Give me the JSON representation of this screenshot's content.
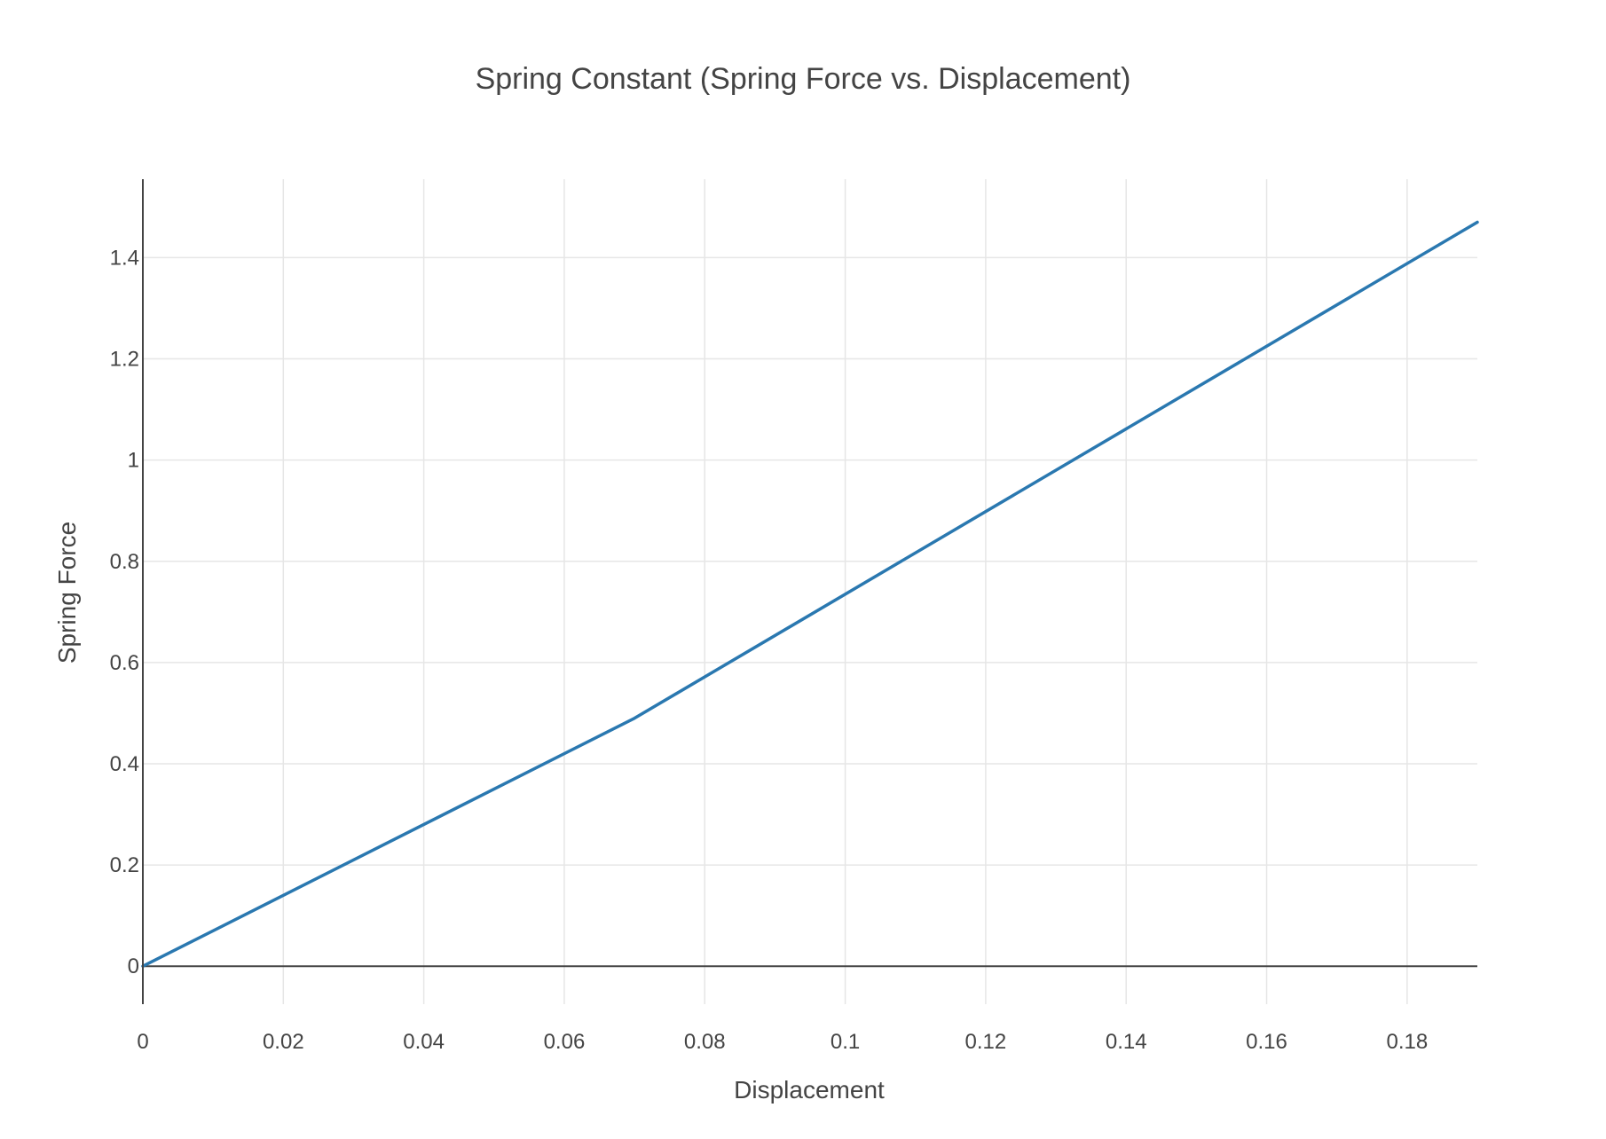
{
  "chart_data": {
    "type": "line",
    "title": "Spring Constant (Spring Force vs. Displacement)",
    "xlabel": "Displacement",
    "ylabel": "Spring Force",
    "xlim": [
      0,
      0.19
    ],
    "ylim": [
      -0.075,
      1.555
    ],
    "x_ticks": [
      0,
      0.02,
      0.04,
      0.06,
      0.08,
      0.1,
      0.12,
      0.14,
      0.16,
      0.18
    ],
    "x_tick_labels": [
      "0",
      "0.02",
      "0.04",
      "0.06",
      "0.08",
      "0.1",
      "0.12",
      "0.14",
      "0.16",
      "0.18"
    ],
    "y_ticks": [
      0,
      0.2,
      0.4,
      0.6,
      0.8,
      1,
      1.2,
      1.4
    ],
    "y_tick_labels": [
      "0",
      "0.2",
      "0.4",
      "0.6",
      "0.8",
      "1",
      "1.2",
      "1.4"
    ],
    "grid": true,
    "series": [
      {
        "color": "#2a78b0",
        "x": [
          0,
          0.07,
          0.19
        ],
        "y": [
          0,
          0.49,
          1.47
        ]
      }
    ]
  }
}
